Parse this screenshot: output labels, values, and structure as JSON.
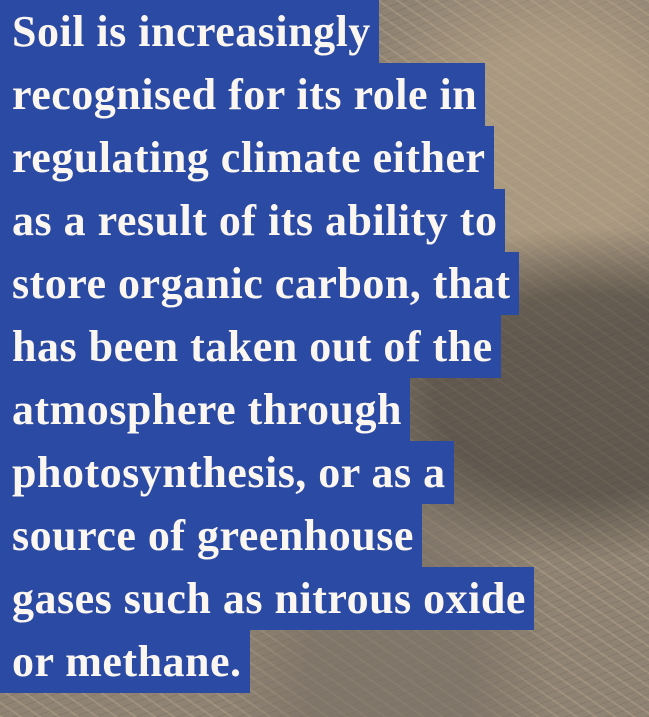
{
  "quote": {
    "lines": [
      "Soil is increasingly",
      "recognised for its role in",
      "regulating climate either",
      "as a result of its ability to",
      "store organic carbon, that",
      "has been taken out of the",
      "atmosphere through",
      "photosynthesis, or as a",
      "source of greenhouse",
      "gases such as nitrous oxide",
      "or methane."
    ]
  }
}
